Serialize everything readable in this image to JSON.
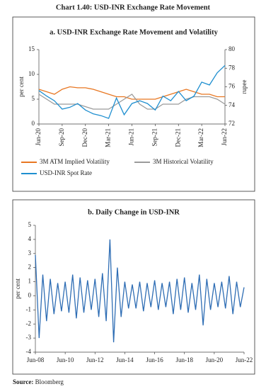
{
  "title": "Chart 1.40: USD-INR Exchange Rate Movement",
  "source": {
    "label": "Source:",
    "text": "Bloomberg"
  },
  "chart_data": [
    {
      "type": "line",
      "title": "a. USD-INR Exchange Rate Movement and Volatility",
      "y_label": "per cent",
      "y2_label": "rupee",
      "categories": [
        "Jun-20",
        null,
        null,
        "Sep-20",
        null,
        null,
        "Dec-20",
        null,
        null,
        "Mar-21",
        null,
        null,
        "Jun-21",
        null,
        null,
        "Sep-21",
        null,
        null,
        "Dec-21",
        null,
        null,
        "Mar-22",
        null,
        null,
        "Jun-22"
      ],
      "ylim": [
        0,
        15
      ],
      "yticks": [
        0,
        5,
        10,
        15
      ],
      "y2lim": [
        72,
        80
      ],
      "y2ticks": [
        72,
        74,
        76,
        78,
        80
      ],
      "series": [
        {
          "name": "3M ATM Implied Volatility",
          "color": "#e87722",
          "values": [
            7,
            6.5,
            6,
            7,
            7.5,
            7.3,
            7.3,
            7,
            6.5,
            6,
            5.5,
            5.5,
            5,
            5,
            5,
            5,
            5.5,
            6,
            6.5,
            7,
            6.5,
            6,
            6,
            5.5,
            5.5
          ]
        },
        {
          "name": "3M Historical Volatility",
          "color": "#9b9b9b",
          "values": [
            6,
            5,
            4,
            4,
            4,
            4,
            3.5,
            3,
            3,
            3,
            4,
            5,
            6,
            4,
            3,
            3,
            4,
            4,
            4,
            5,
            5.5,
            5.5,
            5.5,
            5,
            4
          ]
        },
        {
          "name": "USD-INR Spot Rate",
          "color": "#1f8fd0",
          "axis": "y2",
          "values": [
            75.6,
            75,
            74.5,
            73.6,
            73.8,
            74.2,
            73.5,
            73.1,
            72.9,
            72.6,
            74.8,
            73,
            74.2,
            74.5,
            74.2,
            73.5,
            75,
            74.5,
            75.5,
            74.5,
            75,
            76.5,
            76.2,
            77.5,
            78.3
          ]
        }
      ]
    },
    {
      "type": "line",
      "title": "b. Daily Change in USD-INR",
      "y_label": "per cent",
      "categories": [
        "Jun-08",
        null,
        null,
        null,
        null,
        null,
        null,
        null,
        "Jun-10",
        null,
        null,
        null,
        null,
        null,
        null,
        null,
        "Jun-12",
        null,
        null,
        null,
        null,
        null,
        null,
        null,
        "Jun-14",
        null,
        null,
        null,
        null,
        null,
        null,
        null,
        "Jun-16",
        null,
        null,
        null,
        null,
        null,
        null,
        null,
        "Jun-18",
        null,
        null,
        null,
        null,
        null,
        null,
        null,
        "Jun-20",
        null,
        null,
        null,
        null,
        null,
        null,
        null,
        "Jun-22"
      ],
      "ylim": [
        -4,
        5
      ],
      "yticks": [
        -4,
        -3,
        -2,
        -1,
        0,
        1,
        2,
        3,
        4,
        5
      ],
      "color": "#2e6db4",
      "values": [
        2.9,
        -3.0,
        1.5,
        -1.8,
        1.2,
        -1.3,
        0.9,
        -1.1,
        1.0,
        -1.2,
        1.5,
        -1.6,
        1.3,
        -1.2,
        1.1,
        -1.0,
        1.2,
        -1.5,
        1.6,
        -1.8,
        4.0,
        -3.3,
        2.0,
        -1.5,
        1.0,
        -0.9,
        0.8,
        -0.9,
        1.0,
        -1.1,
        0.9,
        -0.8,
        1.1,
        -1.0,
        0.9,
        -0.8,
        1.0,
        -1.3,
        1.2,
        -1.0,
        1.3,
        -1.2,
        0.9,
        -1.0,
        1.5,
        -2.1,
        1.2,
        -1.0,
        0.9,
        -0.8,
        1.0,
        -0.9,
        1.4,
        -1.3,
        1.0,
        -0.8,
        0.6
      ]
    }
  ]
}
